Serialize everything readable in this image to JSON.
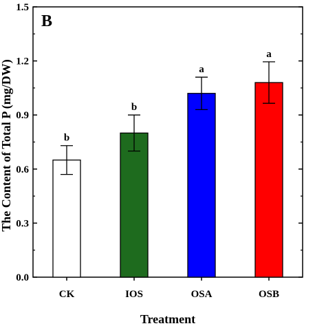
{
  "chart_data": {
    "type": "bar",
    "panel_label": "B",
    "xlabel": "Treatment",
    "ylabel": "The Content of Total P (mg/DW)",
    "ylim": [
      0,
      1.5
    ],
    "yticks": [
      0.0,
      0.3,
      0.6,
      0.9,
      1.2,
      1.5
    ],
    "ytick_labels": [
      "0.0",
      "0.3",
      "0.6",
      "0.9",
      "1.2",
      "1.5"
    ],
    "categories": [
      "CK",
      "IOS",
      "OSA",
      "OSB"
    ],
    "values": [
      0.65,
      0.8,
      1.02,
      1.08
    ],
    "errors": [
      0.08,
      0.1,
      0.09,
      0.115
    ],
    "significance": [
      "b",
      "b",
      "a",
      "a"
    ],
    "colors": [
      "#ffffff",
      "#1e6b1e",
      "#0000ff",
      "#ff0000"
    ],
    "grid": false
  }
}
